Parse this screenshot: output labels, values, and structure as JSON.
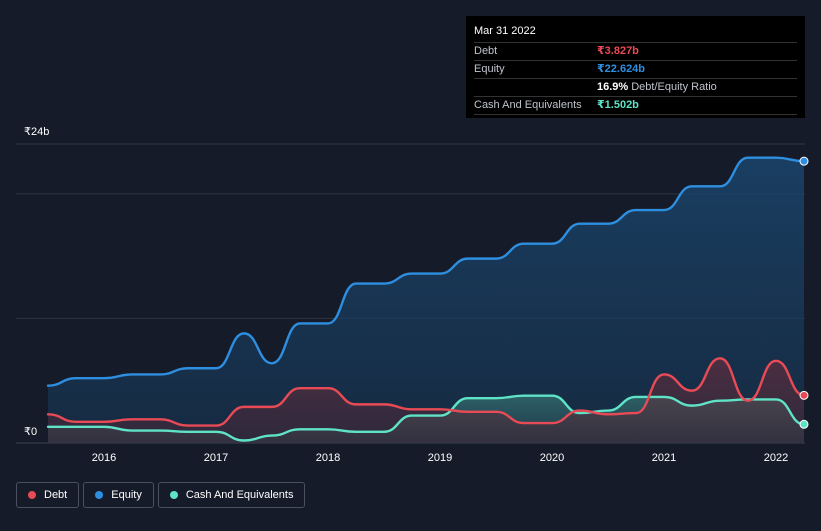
{
  "chart_data": {
    "type": "area",
    "currency_unit": "₹ billions",
    "x_range": [
      2015.5,
      2022.25
    ],
    "ylim": [
      0,
      24
    ],
    "y_tick_labels": [
      "₹24b",
      "₹0"
    ],
    "x_tick_labels": [
      "2016",
      "2017",
      "2018",
      "2019",
      "2020",
      "2021",
      "2022"
    ],
    "x_ticks": [
      2016,
      2017,
      2018,
      2019,
      2020,
      2021,
      2022
    ],
    "gridlines": [
      0,
      10,
      20,
      24
    ],
    "series": [
      {
        "name": "Equity",
        "color": "#2e8ee0",
        "x": [
          2015.5,
          2015.75,
          2016.0,
          2016.25,
          2016.5,
          2016.75,
          2017.0,
          2017.25,
          2017.5,
          2017.75,
          2018.0,
          2018.25,
          2018.5,
          2018.75,
          2019.0,
          2019.25,
          2019.5,
          2019.75,
          2020.0,
          2020.25,
          2020.5,
          2020.75,
          2021.0,
          2021.25,
          2021.5,
          2021.75,
          2022.0,
          2022.25
        ],
        "values": [
          4.6,
          5.2,
          5.2,
          5.5,
          5.5,
          6.0,
          6.0,
          8.8,
          6.4,
          9.6,
          9.6,
          12.8,
          12.8,
          13.6,
          13.6,
          14.8,
          14.8,
          16.0,
          16.0,
          17.6,
          17.6,
          18.7,
          18.7,
          20.6,
          20.6,
          22.9,
          22.9,
          22.624
        ]
      },
      {
        "name": "Cash And Equivalents",
        "color": "#5fe3c7",
        "x": [
          2015.5,
          2015.75,
          2016.0,
          2016.25,
          2016.5,
          2016.75,
          2017.0,
          2017.25,
          2017.5,
          2017.75,
          2018.0,
          2018.25,
          2018.5,
          2018.75,
          2019.0,
          2019.25,
          2019.5,
          2019.75,
          2020.0,
          2020.25,
          2020.5,
          2020.75,
          2021.0,
          2021.25,
          2021.5,
          2021.75,
          2022.0,
          2022.25
        ],
        "values": [
          1.3,
          1.3,
          1.3,
          1.0,
          1.0,
          0.9,
          0.9,
          0.2,
          0.6,
          1.1,
          1.1,
          0.9,
          0.9,
          2.2,
          2.2,
          3.6,
          3.6,
          3.8,
          3.8,
          2.4,
          2.6,
          3.7,
          3.7,
          3.0,
          3.4,
          3.5,
          3.5,
          1.502
        ]
      },
      {
        "name": "Debt",
        "color": "#e84b55",
        "x": [
          2015.5,
          2015.75,
          2016.0,
          2016.25,
          2016.5,
          2016.75,
          2017.0,
          2017.25,
          2017.5,
          2017.75,
          2018.0,
          2018.25,
          2018.5,
          2018.75,
          2019.0,
          2019.25,
          2019.5,
          2019.75,
          2020.0,
          2020.25,
          2020.5,
          2020.75,
          2021.0,
          2021.25,
          2021.5,
          2021.75,
          2022.0,
          2022.25
        ],
        "values": [
          2.3,
          1.7,
          1.7,
          1.9,
          1.9,
          1.4,
          1.4,
          2.9,
          2.9,
          4.4,
          4.4,
          3.1,
          3.1,
          2.7,
          2.7,
          2.5,
          2.5,
          1.6,
          1.6,
          2.6,
          2.3,
          2.4,
          5.5,
          4.2,
          6.8,
          3.4,
          6.6,
          3.827
        ]
      }
    ],
    "tooltip": {
      "date": "Mar 31 2022",
      "debt_label": "Debt",
      "debt_value": "₹3.827b",
      "equity_label": "Equity",
      "equity_value": "₹22.624b",
      "ratio_value": "16.9%",
      "ratio_label": "Debt/Equity Ratio",
      "cash_label": "Cash And Equivalents",
      "cash_value": "₹1.502b"
    },
    "legend": [
      {
        "name": "Debt",
        "color": "#e84b55"
      },
      {
        "name": "Equity",
        "color": "#2e8ee0"
      },
      {
        "name": "Cash And Equivalents",
        "color": "#5fe3c7"
      }
    ]
  }
}
